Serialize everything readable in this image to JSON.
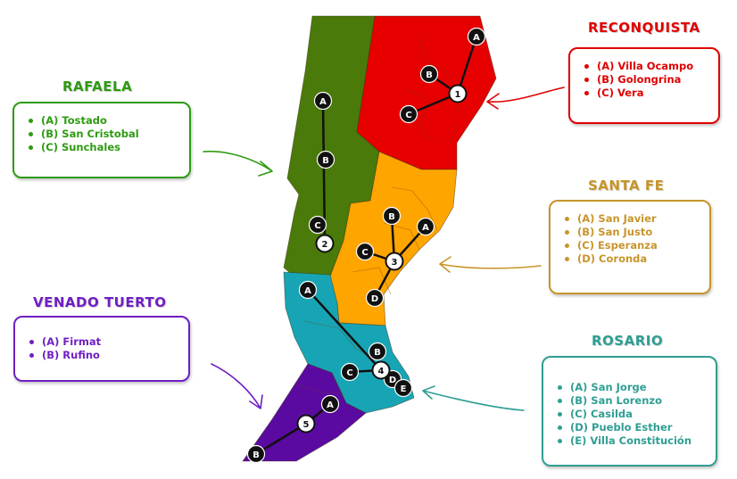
{
  "colors": {
    "rafaela": "#2e9b12",
    "reconquista": "#e00000",
    "santa_fe": "#c8952a",
    "venado_tuerto": "#6f1fc4",
    "rosario": "#2f9e93",
    "map_rafaela": "#4a7a0a",
    "map_reconquista": "#e60000",
    "map_santa_fe": "#ffa500",
    "map_venado_tuerto": "#5a0aa0",
    "map_rosario": "#17a5b5"
  },
  "regions": [
    {
      "key": "rafaela",
      "title": "RAFAELA",
      "items": [
        "(A) Tostado",
        "(B) San Cristobal",
        "(C) Sunchales"
      ]
    },
    {
      "key": "reconquista",
      "title": "RECONQUISTA",
      "items": [
        "(A) Villa Ocampo",
        "(B) Golongrina",
        "(C) Vera"
      ]
    },
    {
      "key": "santa_fe",
      "title": "SANTA FE",
      "items": [
        "(A) San Javier",
        "(B) San Justo",
        "(C) Esperanza",
        "(D) Coronda"
      ]
    },
    {
      "key": "venado_tuerto",
      "title": "VENADO TUERTO",
      "items": [
        "(A) Firmat",
        "(B) Rufino"
      ]
    },
    {
      "key": "rosario",
      "title": "ROSARIO",
      "items": [
        "(A) San Jorge",
        "(B) San Lorenzo",
        "(C) Casilda",
        "(D) Pueblo Esther",
        "(E) Villa Constitución"
      ]
    }
  ],
  "hubs": [
    {
      "label": "1",
      "region": "reconquista",
      "spokes": [
        "A",
        "B",
        "C"
      ]
    },
    {
      "label": "2",
      "region": "rafaela",
      "spokes": [
        "A",
        "B",
        "C"
      ]
    },
    {
      "label": "3",
      "region": "santa_fe",
      "spokes": [
        "A",
        "B",
        "C",
        "D"
      ]
    },
    {
      "label": "4",
      "region": "rosario",
      "spokes": [
        "A",
        "B",
        "C",
        "D",
        "E"
      ]
    },
    {
      "label": "5",
      "region": "venado_tuerto",
      "spokes": [
        "A",
        "B"
      ]
    }
  ]
}
